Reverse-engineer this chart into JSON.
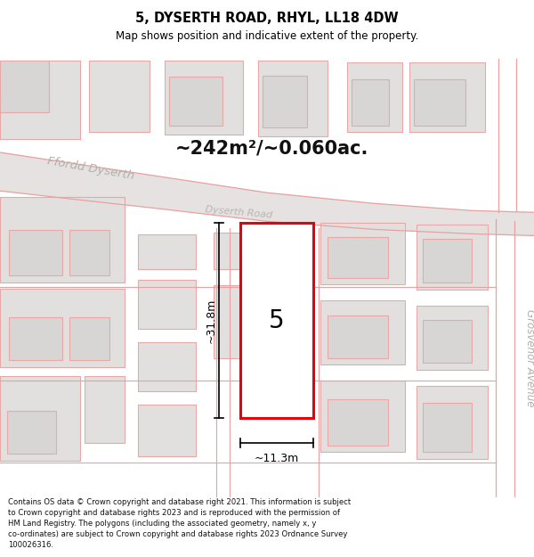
{
  "title": "5, DYSERTH ROAD, RHYL, LL18 4DW",
  "subtitle": "Map shows position and indicative extent of the property.",
  "area_label": "~242m²/~0.060ac.",
  "dim_width": "~11.3m",
  "dim_height": "~31.8m",
  "property_number": "5",
  "footer_line1": "Contains OS data © Crown copyright and database right 2021. This information is subject",
  "footer_line2": "to Crown copyright and database rights 2023 and is reproduced with the permission of",
  "footer_line3": "HM Land Registry. The polygons (including the associated geometry, namely x, y",
  "footer_line4": "co-ordinates) are subject to Crown copyright and database rights 2023 Ordnance Survey",
  "footer_line5": "100026316.",
  "map_bg": "#efedec",
  "grey_fill": "#e2e0df",
  "grey_fill2": "#d8d6d5",
  "pink_stroke": "#e8a8a8",
  "pink_road_line": "#e8a0a0",
  "road_fill": "#e8e4e3",
  "highlight_red": "#e8000a",
  "dim_color": "#000000",
  "label_grey": "#a8a8a8",
  "title_color": "#000000",
  "footer_color": "#111111"
}
